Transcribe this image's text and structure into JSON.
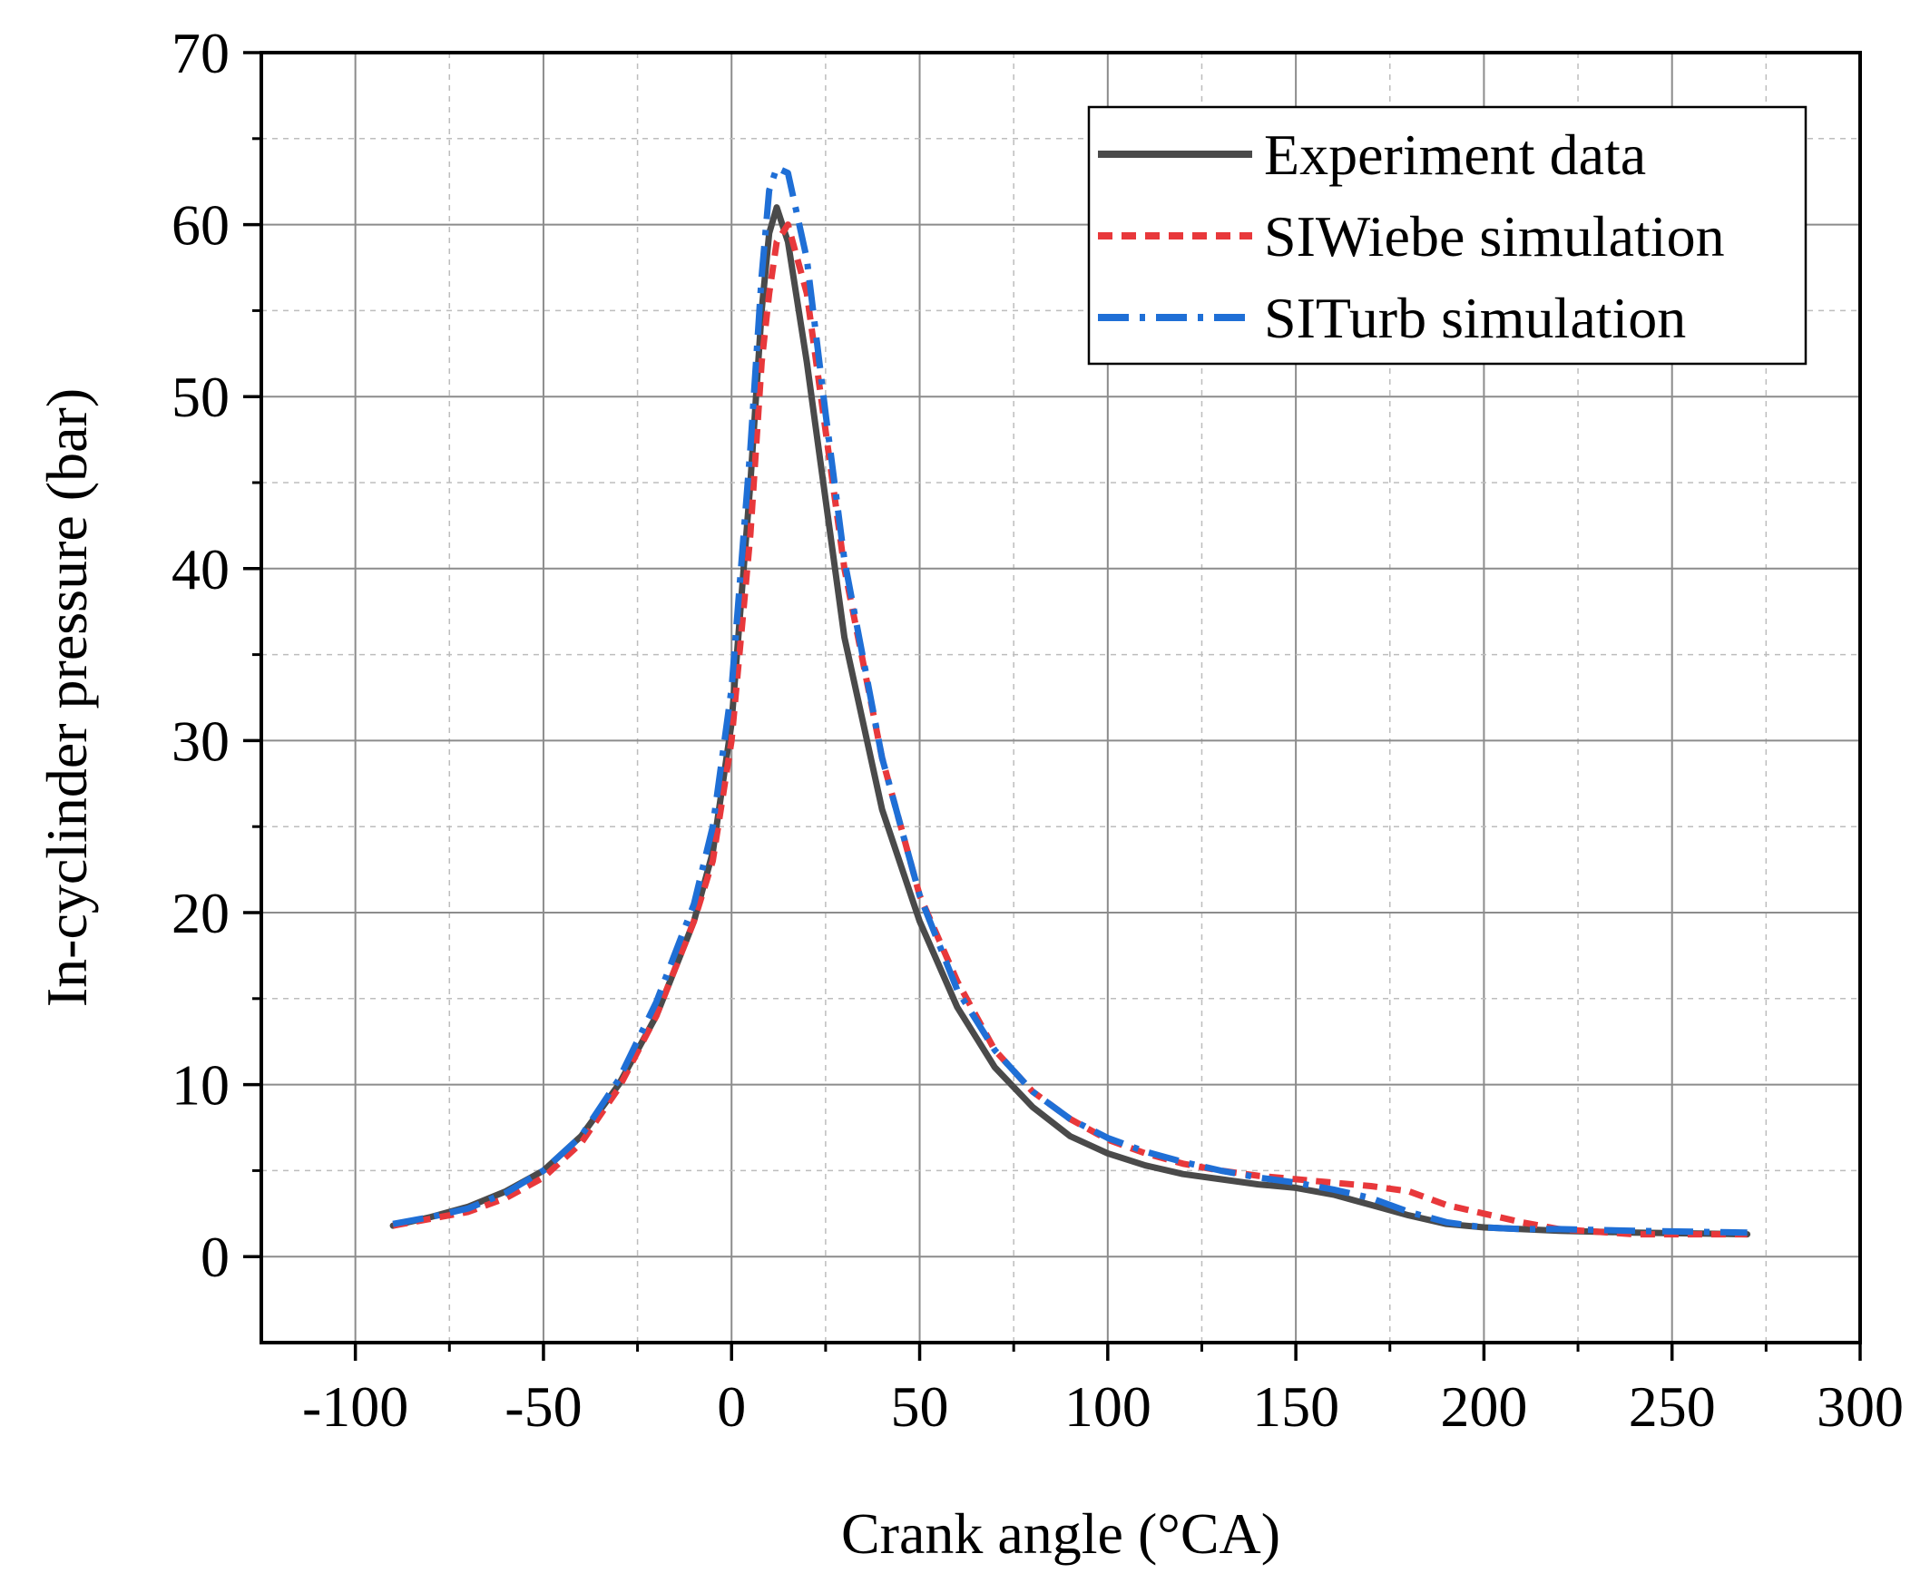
{
  "chart_data": {
    "type": "line",
    "xlabel": "Crank angle (°CA)",
    "ylabel": "In-cyclinder pressure (bar)",
    "xlim": [
      -125,
      300
    ],
    "ylim": [
      -5,
      70
    ],
    "x_ticks": [
      -100,
      -50,
      0,
      50,
      100,
      150,
      200,
      250,
      300
    ],
    "x_tick_labels": [
      "-100",
      "-50",
      "0",
      "50",
      "100",
      "150",
      "200",
      "250",
      "300"
    ],
    "y_ticks": [
      0,
      10,
      20,
      30,
      40,
      50,
      60,
      70
    ],
    "y_tick_labels": [
      "0",
      "10",
      "20",
      "30",
      "40",
      "50",
      "60",
      "70"
    ],
    "grid": true,
    "legend_position": "top-right",
    "series": [
      {
        "name": "Experiment data",
        "color": "#4a4a4a",
        "style": "solid",
        "points": [
          [
            -90,
            1.8
          ],
          [
            -80,
            2.3
          ],
          [
            -70,
            2.9
          ],
          [
            -60,
            3.8
          ],
          [
            -50,
            5.0
          ],
          [
            -40,
            7.0
          ],
          [
            -30,
            10.0
          ],
          [
            -20,
            14.0
          ],
          [
            -10,
            19.5
          ],
          [
            -5,
            23.5
          ],
          [
            0,
            31
          ],
          [
            5,
            45
          ],
          [
            8,
            55
          ],
          [
            10,
            59.5
          ],
          [
            12,
            61
          ],
          [
            15,
            59
          ],
          [
            20,
            52
          ],
          [
            25,
            44
          ],
          [
            30,
            36
          ],
          [
            40,
            26
          ],
          [
            50,
            19.5
          ],
          [
            60,
            14.5
          ],
          [
            70,
            11
          ],
          [
            80,
            8.7
          ],
          [
            90,
            7.0
          ],
          [
            100,
            6.0
          ],
          [
            110,
            5.3
          ],
          [
            120,
            4.8
          ],
          [
            130,
            4.5
          ],
          [
            140,
            4.2
          ],
          [
            150,
            4.0
          ],
          [
            160,
            3.6
          ],
          [
            165,
            3.3
          ],
          [
            170,
            3.0
          ],
          [
            180,
            2.4
          ],
          [
            190,
            1.9
          ],
          [
            200,
            1.7
          ],
          [
            210,
            1.6
          ],
          [
            220,
            1.5
          ],
          [
            240,
            1.4
          ],
          [
            270,
            1.3
          ]
        ]
      },
      {
        "name": "SIWiebe simulation",
        "color": "#e8383b",
        "style": "dashed",
        "points": [
          [
            -90,
            1.8
          ],
          [
            -80,
            2.2
          ],
          [
            -70,
            2.6
          ],
          [
            -60,
            3.4
          ],
          [
            -50,
            4.6
          ],
          [
            -40,
            6.6
          ],
          [
            -30,
            9.8
          ],
          [
            -20,
            14.0
          ],
          [
            -10,
            19.5
          ],
          [
            -5,
            23
          ],
          [
            0,
            30
          ],
          [
            5,
            42
          ],
          [
            8,
            52
          ],
          [
            10,
            56
          ],
          [
            12,
            59
          ],
          [
            15,
            60
          ],
          [
            20,
            56
          ],
          [
            25,
            48
          ],
          [
            30,
            40
          ],
          [
            40,
            29
          ],
          [
            50,
            21
          ],
          [
            60,
            16
          ],
          [
            70,
            12
          ],
          [
            80,
            9.6
          ],
          [
            90,
            8
          ],
          [
            100,
            6.8
          ],
          [
            110,
            6.0
          ],
          [
            120,
            5.4
          ],
          [
            130,
            5.0
          ],
          [
            140,
            4.7
          ],
          [
            150,
            4.5
          ],
          [
            160,
            4.3
          ],
          [
            170,
            4.1
          ],
          [
            180,
            3.8
          ],
          [
            190,
            3.0
          ],
          [
            200,
            2.5
          ],
          [
            210,
            2.0
          ],
          [
            220,
            1.6
          ],
          [
            240,
            1.3
          ],
          [
            270,
            1.3
          ]
        ]
      },
      {
        "name": "SITurb simulation",
        "color": "#1f6fd6",
        "style": "dash-dot",
        "points": [
          [
            -90,
            1.9
          ],
          [
            -80,
            2.3
          ],
          [
            -70,
            2.8
          ],
          [
            -60,
            3.7
          ],
          [
            -50,
            5.0
          ],
          [
            -40,
            7.0
          ],
          [
            -30,
            10.3
          ],
          [
            -20,
            14.8
          ],
          [
            -10,
            20.5
          ],
          [
            -5,
            25
          ],
          [
            0,
            33
          ],
          [
            5,
            47
          ],
          [
            8,
            57
          ],
          [
            10,
            62
          ],
          [
            12,
            63.3
          ],
          [
            15,
            63
          ],
          [
            20,
            58
          ],
          [
            25,
            49
          ],
          [
            30,
            40.5
          ],
          [
            40,
            29
          ],
          [
            50,
            21
          ],
          [
            60,
            15.5
          ],
          [
            70,
            12
          ],
          [
            80,
            9.6
          ],
          [
            90,
            8
          ],
          [
            100,
            6.9
          ],
          [
            110,
            6.1
          ],
          [
            120,
            5.5
          ],
          [
            130,
            5.0
          ],
          [
            140,
            4.6
          ],
          [
            150,
            4.3
          ],
          [
            160,
            3.9
          ],
          [
            170,
            3.4
          ],
          [
            180,
            2.6
          ],
          [
            190,
            2.0
          ],
          [
            200,
            1.7
          ],
          [
            210,
            1.6
          ],
          [
            220,
            1.6
          ],
          [
            240,
            1.5
          ],
          [
            270,
            1.4
          ]
        ]
      }
    ]
  }
}
